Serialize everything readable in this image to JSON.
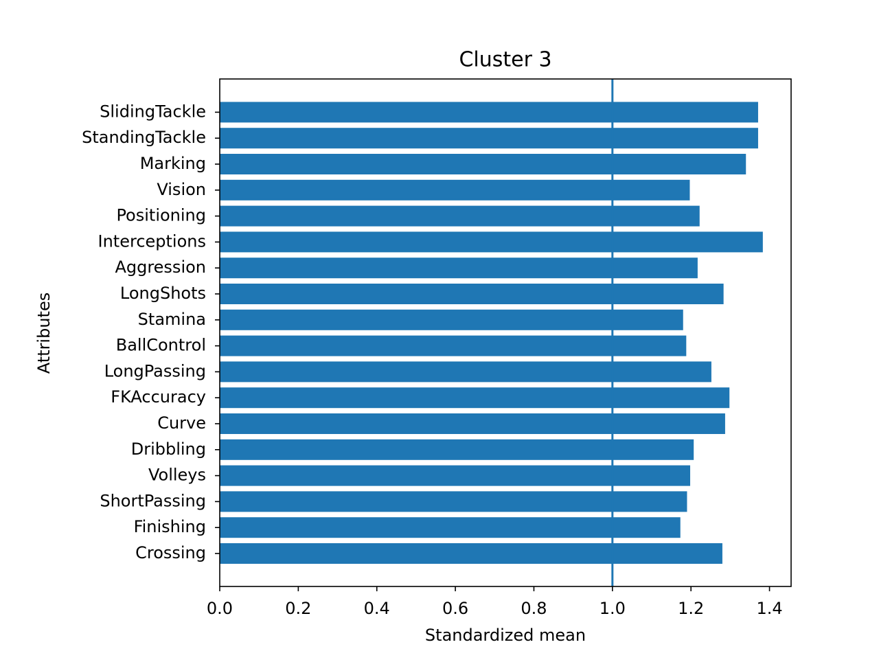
{
  "chart_data": {
    "type": "bar",
    "orientation": "horizontal",
    "title": "Cluster 3",
    "xlabel": "Standardized mean",
    "ylabel": "Attributes",
    "categories": [
      "Crossing",
      "Finishing",
      "ShortPassing",
      "Volleys",
      "Dribbling",
      "Curve",
      "FKAccuracy",
      "LongPassing",
      "BallControl",
      "Stamina",
      "LongShots",
      "Aggression",
      "Interceptions",
      "Positioning",
      "Vision",
      "Marking",
      "StandingTackle",
      "SlidingTackle"
    ],
    "values": [
      1.28,
      1.173,
      1.19,
      1.198,
      1.207,
      1.287,
      1.298,
      1.252,
      1.188,
      1.18,
      1.283,
      1.217,
      1.383,
      1.222,
      1.197,
      1.34,
      1.371,
      1.371
    ],
    "xlim": [
      0.0,
      1.455
    ],
    "xticks": [
      0.0,
      0.2,
      0.4,
      0.6,
      0.8,
      1.0,
      1.2,
      1.4
    ],
    "xtick_labels": [
      "0.0",
      "0.2",
      "0.4",
      "0.6",
      "0.8",
      "1.0",
      "1.2",
      "1.4"
    ],
    "reference_line": 1.0,
    "grid": false,
    "colors": {
      "bar": "#1f77b4",
      "reference_line": "#1f77b4",
      "axes": "#000000",
      "background": "#ffffff"
    }
  }
}
